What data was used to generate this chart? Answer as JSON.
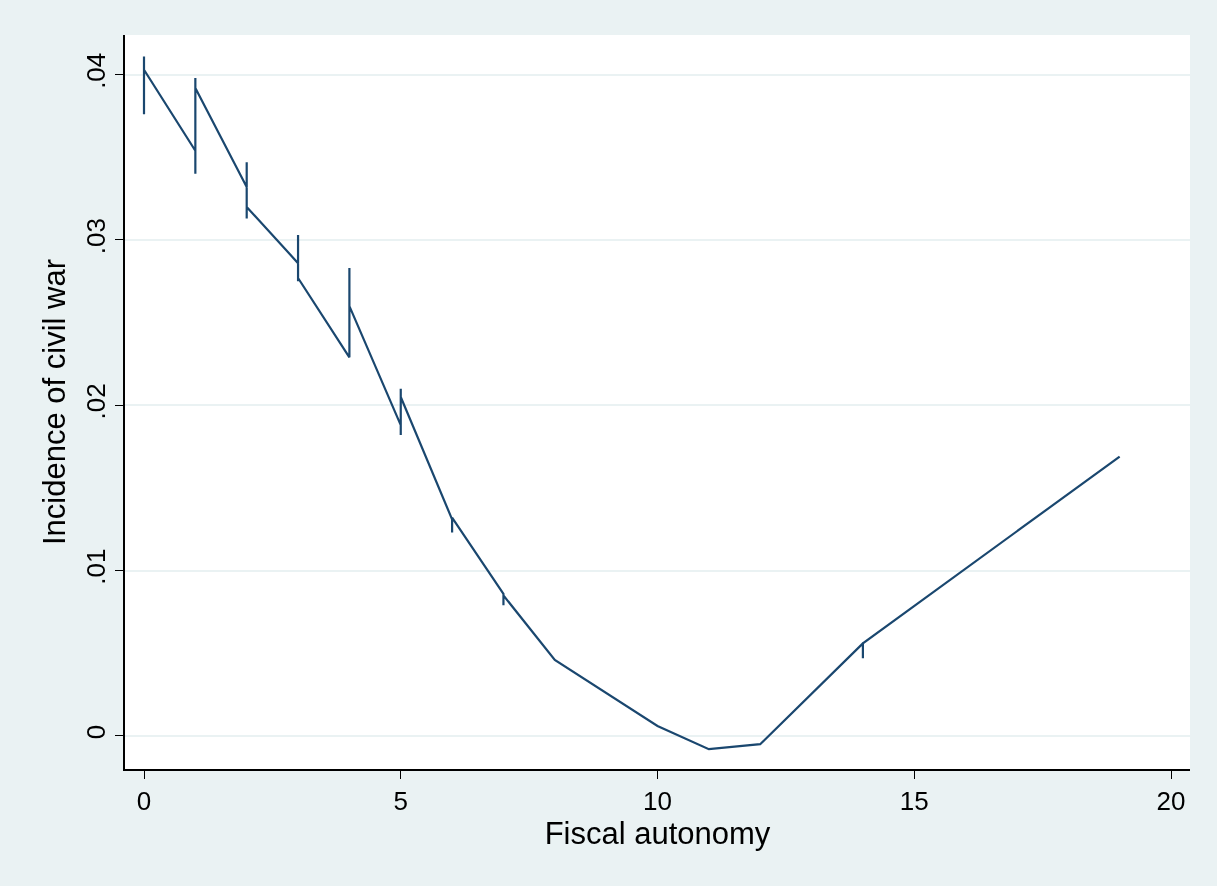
{
  "chart_data": {
    "type": "line",
    "xlabel": "Fiscal autonomy",
    "ylabel": "Incidence of civil war",
    "x": [
      0,
      0,
      0,
      1,
      1,
      1,
      1,
      2,
      2,
      2,
      2,
      3,
      3,
      3,
      3,
      4,
      4,
      4,
      5,
      5,
      5,
      5,
      6,
      6,
      6,
      7,
      7,
      7,
      8,
      10,
      11,
      12,
      14,
      14,
      14,
      19
    ],
    "series": [
      {
        "color": "#1a476f",
        "values": [
          0.0376,
          0.0411,
          0.0403,
          0.0354,
          0.034,
          0.0398,
          0.0392,
          0.0332,
          0.0347,
          0.0313,
          0.032,
          0.0286,
          0.0303,
          0.0275,
          0.0277,
          0.0229,
          0.0283,
          0.026,
          0.0188,
          0.0182,
          0.021,
          0.0205,
          0.0131,
          0.0123,
          0.0132,
          0.0086,
          0.0079,
          0.0085,
          0.0046,
          0.0006,
          -0.0008,
          -0.0005,
          0.0056,
          0.0047,
          0.0056,
          0.0169
        ]
      }
    ],
    "xlim": [
      -0.37,
      20.37
    ],
    "ylim": [
      -0.002,
      0.0424
    ],
    "xticks": [
      0,
      5,
      10,
      15,
      20
    ],
    "yticks": [
      {
        "value": 0,
        "label": "0"
      },
      {
        "value": 0.01,
        "label": ".01"
      },
      {
        "value": 0.02,
        "label": ".02"
      },
      {
        "value": 0.03,
        "label": ".03"
      },
      {
        "value": 0.04,
        "label": ".04"
      }
    ],
    "grid": "y",
    "marker": "none",
    "line_style": "solid",
    "legend": false
  }
}
